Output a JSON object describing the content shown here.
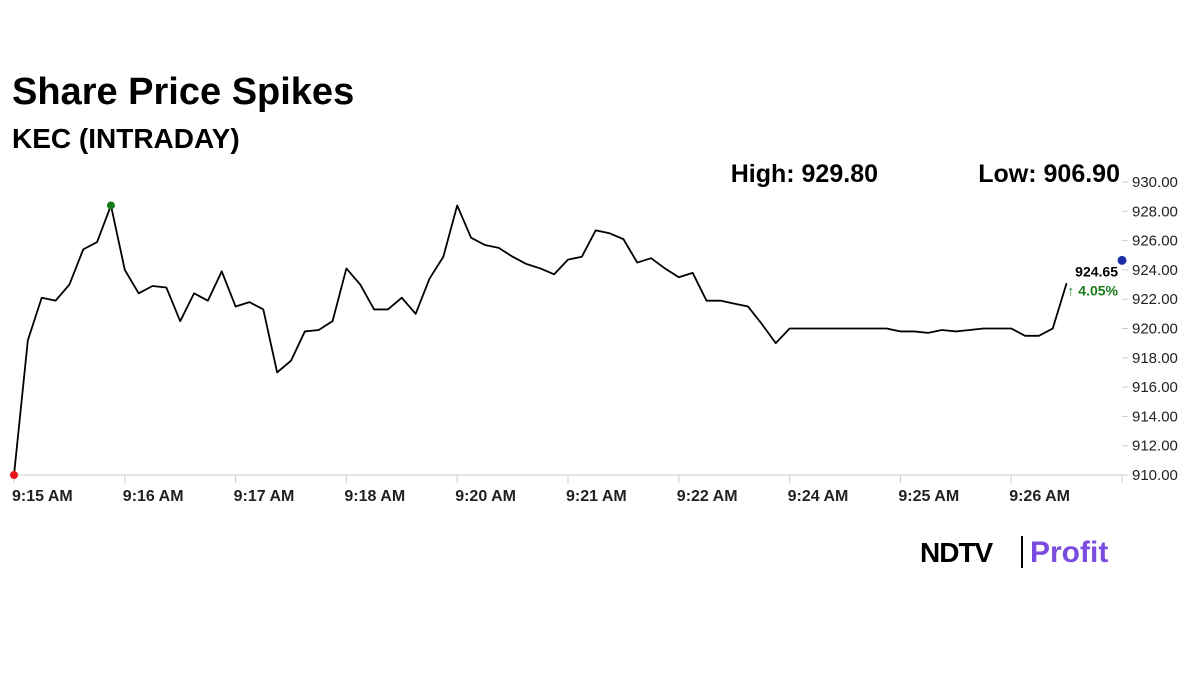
{
  "chart_data": {
    "type": "line",
    "title": "Share Price Spikes",
    "subtitle": "KEC (INTRADAY)",
    "high_label": "High: 929.80",
    "low_label": "Low: 906.90",
    "xlim": [
      0,
      80
    ],
    "xticks": [
      {
        "value": 0,
        "label": "9:15 AM"
      },
      {
        "value": 8,
        "label": "9:16 AM"
      },
      {
        "value": 16,
        "label": "9:17 AM"
      },
      {
        "value": 24,
        "label": "9:18 AM"
      },
      {
        "value": 32,
        "label": "9:20 AM"
      },
      {
        "value": 40,
        "label": "9:21 AM"
      },
      {
        "value": 48,
        "label": "9:22 AM"
      },
      {
        "value": 56,
        "label": "9:24 AM"
      },
      {
        "value": 64,
        "label": "9:25 AM"
      },
      {
        "value": 72,
        "label": "9:26 AM"
      },
      {
        "value": 80,
        "label": ""
      }
    ],
    "ylim": [
      910,
      930
    ],
    "yticks": [
      {
        "value": 910,
        "label": "910.00"
      },
      {
        "value": 912,
        "label": "912.00"
      },
      {
        "value": 914,
        "label": "914.00"
      },
      {
        "value": 916,
        "label": "916.00"
      },
      {
        "value": 918,
        "label": "918.00"
      },
      {
        "value": 920,
        "label": "920.00"
      },
      {
        "value": 922,
        "label": "922.00"
      },
      {
        "value": 924,
        "label": "924.00"
      },
      {
        "value": 926,
        "label": "926.00"
      },
      {
        "value": 928,
        "label": "928.00"
      },
      {
        "value": 930,
        "label": "930.00"
      }
    ],
    "series": [
      {
        "color": "#000000",
        "values": [
          910,
          919.2,
          922.1,
          921.9,
          923.0,
          925.4,
          925.9,
          928.4,
          924.0,
          922.4,
          922.9,
          922.8,
          920.5,
          922.4,
          921.9,
          923.9,
          921.5,
          921.8,
          921.3,
          917.0,
          917.8,
          919.8,
          919.9,
          920.5,
          924.1,
          923.0,
          921.3,
          921.3,
          922.1,
          921.0,
          923.4,
          924.9,
          928.4,
          926.2,
          925.7,
          925.5,
          924.9,
          924.4,
          924.1,
          923.7,
          924.7,
          924.9,
          926.7,
          926.5,
          926.1,
          924.5,
          924.8,
          924.1,
          923.5,
          923.8,
          921.9,
          921.9,
          921.7,
          921.5,
          920.3,
          919.0,
          920.0,
          920.0,
          920.0,
          920.0,
          920.0,
          920.0,
          920.0,
          920.0,
          919.8,
          919.8,
          919.7,
          919.9,
          919.8,
          919.9,
          920.0,
          920.0,
          920.0,
          919.5,
          919.5,
          920.0,
          923.1
        ]
      }
    ],
    "low_marker_color": "#e8141b",
    "high_marker_color": "#1a7a1a",
    "current": {
      "value": 924.65,
      "color": "#1a2fa8",
      "change": "↑ 4.05%",
      "change_color": "#1a7a1a"
    },
    "logo": [
      "NDTV",
      "Profit"
    ]
  }
}
